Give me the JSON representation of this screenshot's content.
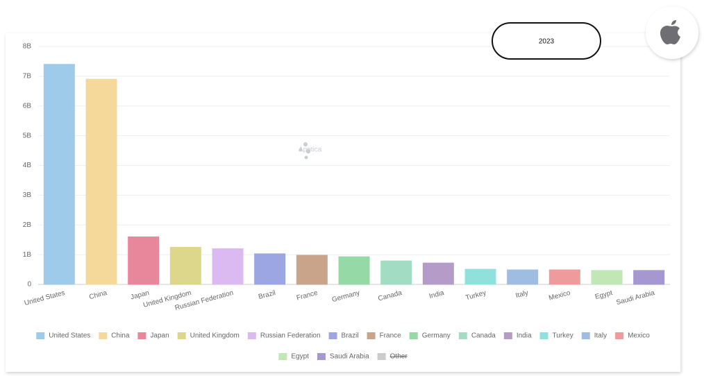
{
  "chart_data": {
    "type": "bar",
    "badge": "2023",
    "watermark": "Apptica",
    "categories": [
      "United States",
      "China",
      "Japan",
      "United Kingdom",
      "Russian Federation",
      "Brazil",
      "France",
      "Germany",
      "Canada",
      "India",
      "Turkey",
      "Italy",
      "Mexico",
      "Egypt",
      "Saudi Arabia"
    ],
    "values": [
      7400000000,
      6900000000,
      1600000000,
      1250000000,
      1200000000,
      1030000000,
      980000000,
      930000000,
      790000000,
      720000000,
      510000000,
      490000000,
      490000000,
      470000000,
      470000000
    ],
    "colors": [
      "#9fcbea",
      "#f5d99b",
      "#e8869c",
      "#ddd78c",
      "#dbbaf2",
      "#9ba6e2",
      "#c9a48a",
      "#95d9a6",
      "#a2dcc2",
      "#b59bc8",
      "#90e1db",
      "#9fbde1",
      "#ef9b9b",
      "#c1e7b5",
      "#a697d1"
    ],
    "hidden_categories": [
      {
        "name": "Other",
        "color": "#cccccc"
      }
    ],
    "ylim": [
      0,
      8000000000
    ],
    "yticks": [
      0,
      {
        "value": 1000000000,
        "label": "1B"
      },
      {
        "value": 2000000000,
        "label": "2B"
      },
      {
        "value": 3000000000,
        "label": "3B"
      },
      {
        "value": 4000000000,
        "label": "4B"
      },
      {
        "value": 5000000000,
        "label": "5B"
      },
      {
        "value": 6000000000,
        "label": "6B"
      },
      {
        "value": 7000000000,
        "label": "7B"
      },
      {
        "value": 8000000000,
        "label": "8B"
      }
    ],
    "grid": true
  }
}
